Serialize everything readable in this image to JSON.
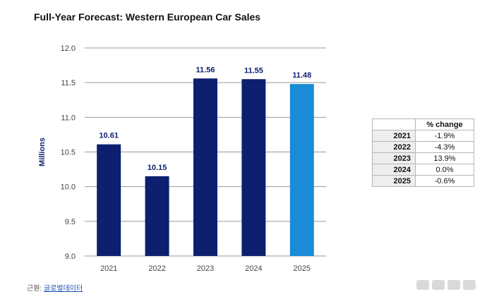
{
  "chart_data": {
    "type": "bar",
    "title": "Full-Year Forecast: Western European Car Sales",
    "ylabel": "Millions",
    "xlabel": "",
    "ylim": [
      9.0,
      12.0
    ],
    "yticks": [
      "12.0",
      "11.5",
      "11.0",
      "10.5",
      "10.0",
      "9.5",
      "9.0"
    ],
    "categories": [
      "2021",
      "2022",
      "2023",
      "2024",
      "2025"
    ],
    "values": [
      10.61,
      10.15,
      11.56,
      11.55,
      11.48
    ],
    "value_labels": [
      "10.61",
      "10.15",
      "11.56",
      "11.55",
      "11.48"
    ],
    "grid": true,
    "colors": {
      "bar": "#0d1f6e",
      "highlight": "#1a8bd6",
      "label": "#0d1f6e",
      "grid": "#999999"
    }
  },
  "table": {
    "header": "% change",
    "rows": [
      {
        "year": "2021",
        "change": "-1.9%"
      },
      {
        "year": "2022",
        "change": "-4.3%"
      },
      {
        "year": "2023",
        "change": "13.9%"
      },
      {
        "year": "2024",
        "change": "0.0%"
      },
      {
        "year": "2025",
        "change": "-0.6%"
      }
    ]
  },
  "source": {
    "prefix": "근원:",
    "link": "글로벌데이터"
  }
}
